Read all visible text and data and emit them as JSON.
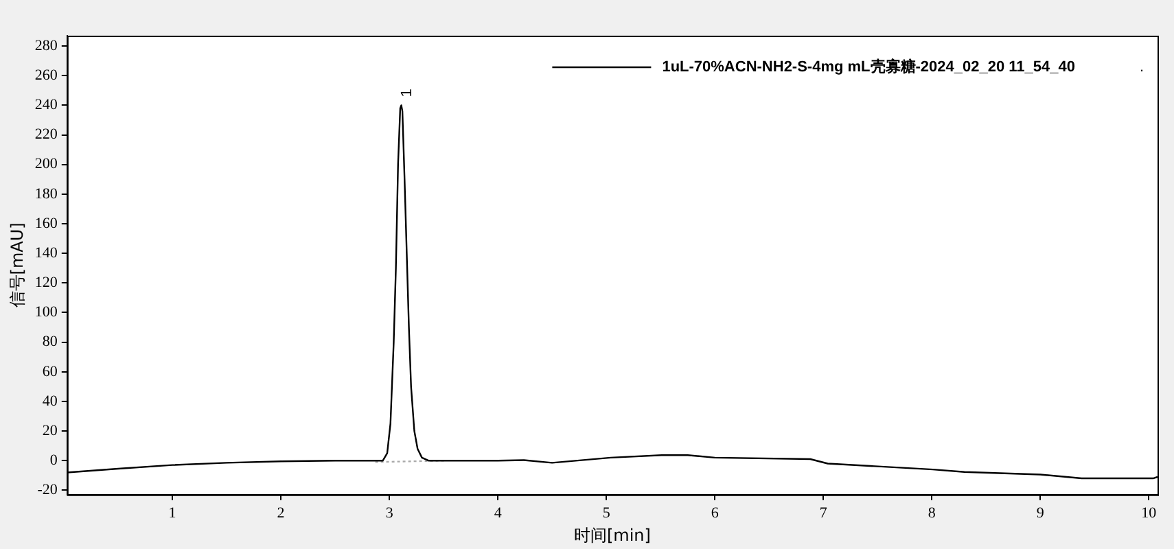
{
  "chart_data": {
    "type": "line",
    "xlabel": "时间[min]",
    "ylabel": "信号[mAU]",
    "xlim": [
      0.03,
      10.08
    ],
    "xticks": [
      1,
      2,
      3,
      4,
      5,
      6,
      7,
      8,
      9,
      10
    ],
    "ylim": [
      -23,
      287
    ],
    "yticks": [
      -20,
      0,
      20,
      40,
      60,
      80,
      100,
      120,
      140,
      160,
      180,
      200,
      220,
      240,
      260,
      280
    ],
    "grid": false,
    "legend": "top right",
    "marker": "none",
    "series": [
      {
        "name": "1uL-70%ACN-NH2-S-4mg mL壳寡糖-2024_02_20 11_54_40",
        "color": "#000000",
        "line_style": "solid",
        "x": [
          0.03,
          0.5,
          1,
          1.5,
          2,
          2.5,
          2.94,
          2.98,
          3.01,
          3.04,
          3.06,
          3.08,
          3.1,
          3.11,
          3.12,
          3.14,
          3.16,
          3.18,
          3.2,
          3.23,
          3.26,
          3.3,
          3.36,
          4.0,
          4.24,
          4.5,
          5.04,
          5.51,
          5.75,
          6.0,
          6.88,
          7.04,
          8.01,
          8.3,
          9.0,
          9.38,
          10.04,
          10.08
        ],
        "values": [
          -8,
          -5.5,
          -3,
          -1.5,
          -0.5,
          0,
          0,
          5,
          25,
          80,
          130,
          200,
          238,
          240,
          236,
          190,
          140,
          90,
          50,
          20,
          8,
          2,
          0,
          0,
          0.3,
          -1.5,
          2,
          3.7,
          3.7,
          2,
          1,
          -2,
          -6,
          -7.7,
          -9.4,
          -12,
          -12,
          -11
        ]
      },
      {
        "color": "#aaaaaa",
        "line_style": "dotted",
        "x": [
          2.87,
          3.52
        ],
        "values": [
          -1,
          0
        ]
      }
    ],
    "annotations": [
      {
        "text": "1",
        "x": 3.11,
        "y": 240
      },
      "."
    ]
  }
}
